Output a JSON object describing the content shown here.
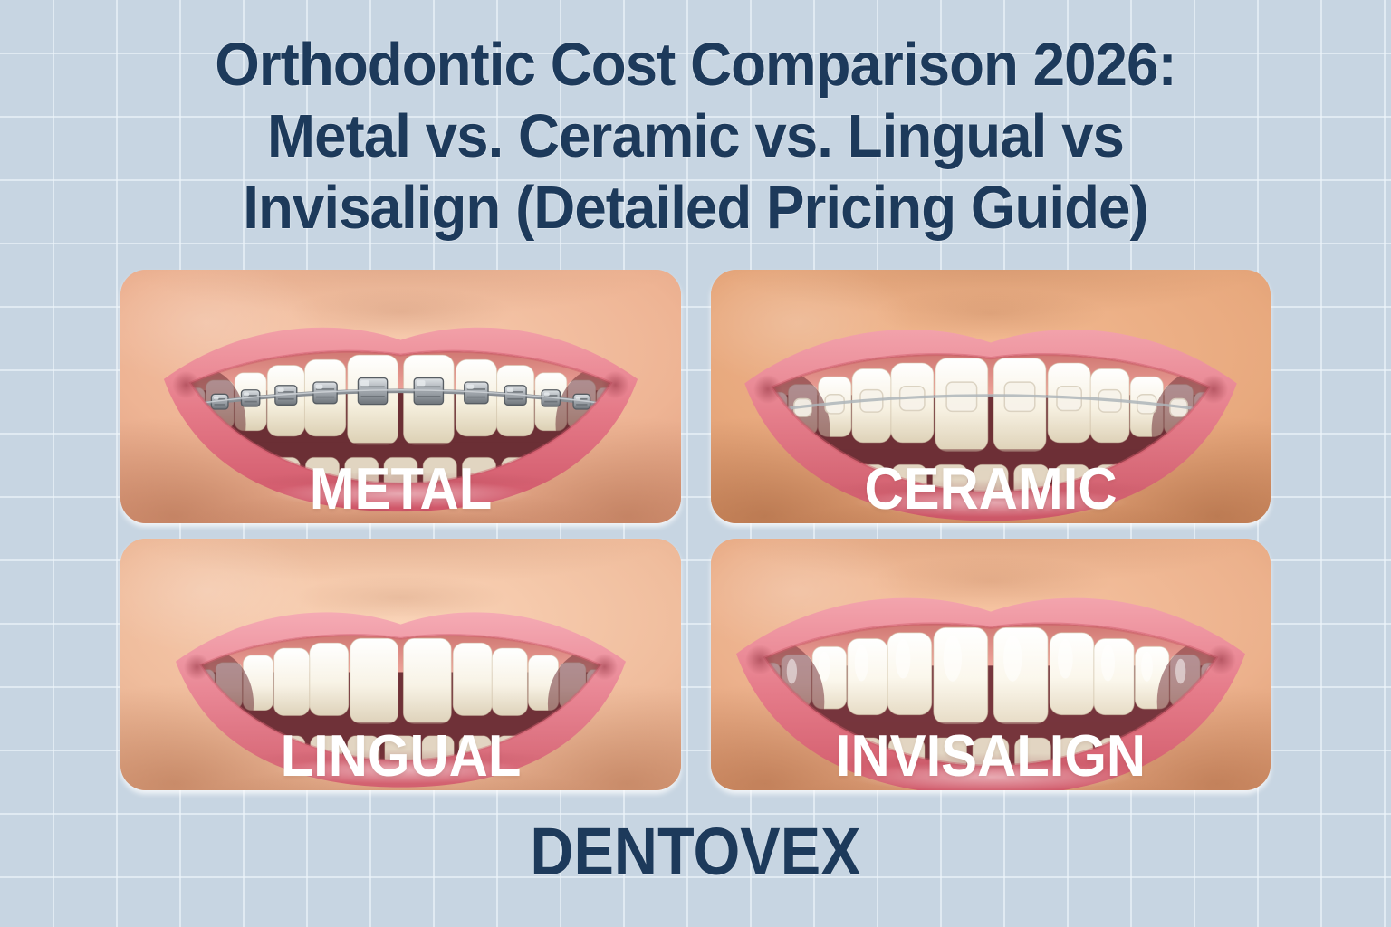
{
  "title": {
    "lines": [
      "Orthodontic Cost Comparison 2026:",
      "Metal vs. Ceramic vs. Lingual vs",
      "Invisalign (Detailed Pricing Guide)"
    ]
  },
  "panels": [
    {
      "id": "metal",
      "label": "METAL",
      "photo_alt": "Close-up smiling mouth with metal bracket braces and archwire"
    },
    {
      "id": "ceramic",
      "label": "CERAMIC",
      "photo_alt": "Close-up smiling mouth with translucent ceramic braces"
    },
    {
      "id": "lingual",
      "label": "LINGUAL",
      "photo_alt": "Close-up smiling mouth with no visible braces (lingual braces behind teeth)"
    },
    {
      "id": "invisalign",
      "label": "INVISALIGN",
      "photo_alt": "Close-up smiling mouth wearing clear Invisalign aligners"
    }
  ],
  "brand": {
    "name": "DENTOVEX"
  },
  "colors": {
    "background": "#c7d5e2",
    "grid_line": "#e9f1f7",
    "heading_navy": "#1d3a5b",
    "label_white": "#ffffff"
  }
}
